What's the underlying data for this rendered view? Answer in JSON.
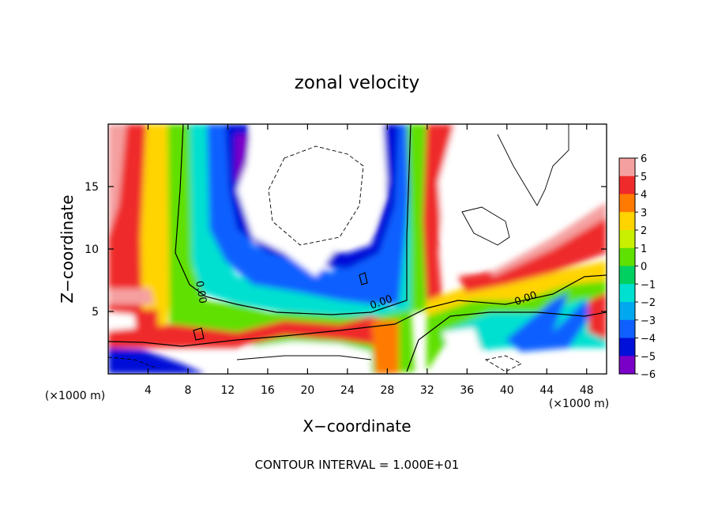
{
  "chart_data": {
    "type": "heatmap",
    "title": "zonal velocity",
    "xlabel": "X−coordinate",
    "ylabel": "Z−coordinate",
    "x_unit_label": "(×1000 m)",
    "y_unit_label": "(×1000 m)",
    "footer": "CONTOUR INTERVAL = 1.000E+01",
    "xlim": [
      0,
      50
    ],
    "ylim": [
      0,
      20
    ],
    "x_ticks": [
      4,
      8,
      12,
      16,
      20,
      24,
      28,
      32,
      36,
      40,
      44,
      48
    ],
    "y_ticks": [
      5,
      10,
      15
    ],
    "colorbar": {
      "ticks": [
        "6",
        "5",
        "4",
        "3",
        "2",
        "1",
        "0",
        "−1",
        "−2",
        "−3",
        "−4",
        "−5",
        "−6"
      ],
      "levels": [
        {
          "value": 5.5,
          "color": "#f5a0a0"
        },
        {
          "value": 4.5,
          "color": "#ef2a2a"
        },
        {
          "value": 3.5,
          "color": "#ff7a00"
        },
        {
          "value": 2.5,
          "color": "#ffd400"
        },
        {
          "value": 1.5,
          "color": "#c8f000"
        },
        {
          "value": 0.5,
          "color": "#5ee000"
        },
        {
          "value": -0.5,
          "color": "#00d060"
        },
        {
          "value": -1.5,
          "color": "#00e0d0"
        },
        {
          "value": -2.5,
          "color": "#00a8f0"
        },
        {
          "value": -3.5,
          "color": "#1060ff"
        },
        {
          "value": -4.5,
          "color": "#0010d8"
        },
        {
          "value": -5.5,
          "color": "#7a00c8"
        }
      ]
    },
    "contour_labels": [
      {
        "text": "0.00",
        "x": 9,
        "y": 6.5
      },
      {
        "text": "0.00",
        "x": 27.5,
        "y": 5.5
      },
      {
        "text": "0.00",
        "x": 42,
        "y": 5.8
      }
    ]
  }
}
